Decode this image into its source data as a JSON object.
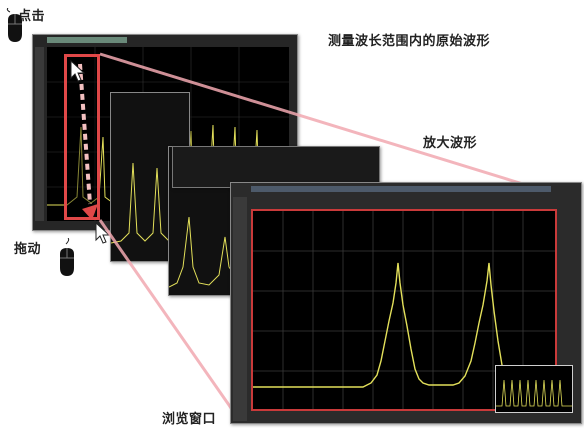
{
  "annotations": {
    "click": "点击",
    "original_waveform": "测量波长范围内的原始波形",
    "zoom_waveform": "放大波形",
    "drag": "拖动",
    "overview_window": "浏览窗口"
  },
  "icons": {
    "mouse_click": "mouse-icon",
    "mouse_drag": "mouse-icon",
    "pointer": "arrow-cursor-icon"
  },
  "colors": {
    "trace": "#e3e05a",
    "selection": "#e04848",
    "zoom_lines": "#f2a9b1",
    "grid": "#3a3a3a",
    "screen_bg": "#000000"
  }
}
